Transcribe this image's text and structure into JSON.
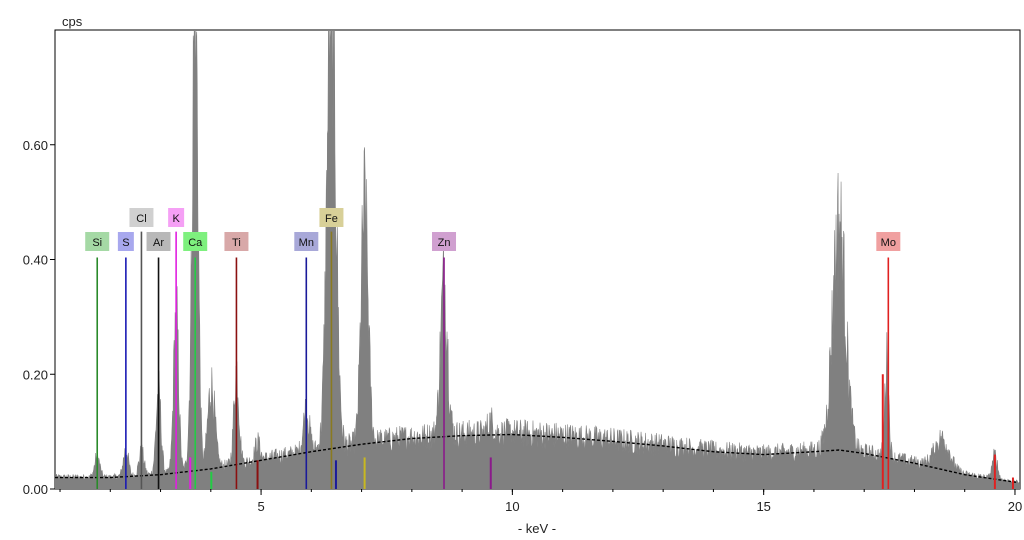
{
  "chart_data": {
    "type": "area",
    "title": "",
    "ylabel": "cps",
    "xlabel": "- keV -",
    "xlim": [
      0.9,
      20.1
    ],
    "ylim": [
      0,
      0.8
    ],
    "xticks": [
      5,
      10,
      15,
      20
    ],
    "yticks": [
      0,
      0.2,
      0.4,
      0.6
    ],
    "ytick_labels": [
      "0.00",
      "0.20",
      "0.40",
      "0.60"
    ],
    "grid": false,
    "spectrum_color": "#808080",
    "background_color": "#000000",
    "background_points": [
      [
        0.9,
        0.02
      ],
      [
        2,
        0.02
      ],
      [
        3,
        0.025
      ],
      [
        4,
        0.035
      ],
      [
        5,
        0.05
      ],
      [
        6,
        0.065
      ],
      [
        7,
        0.078
      ],
      [
        8,
        0.088
      ],
      [
        9,
        0.093
      ],
      [
        10,
        0.095
      ],
      [
        11,
        0.09
      ],
      [
        12,
        0.083
      ],
      [
        13,
        0.075
      ],
      [
        14,
        0.065
      ],
      [
        15,
        0.06
      ],
      [
        16,
        0.065
      ],
      [
        16.5,
        0.068
      ],
      [
        17,
        0.062
      ],
      [
        18,
        0.045
      ],
      [
        19,
        0.025
      ],
      [
        20,
        0.012
      ]
    ],
    "peaks": [
      {
        "x": 1.74,
        "h": 0.035,
        "w": 0.05
      },
      {
        "x": 2.31,
        "h": 0.045,
        "w": 0.05
      },
      {
        "x": 2.62,
        "h": 0.04,
        "w": 0.05
      },
      {
        "x": 2.96,
        "h": 0.14,
        "w": 0.05
      },
      {
        "x": 3.31,
        "h": 0.27,
        "w": 0.05
      },
      {
        "x": 3.59,
        "h": 0.05,
        "w": 0.05
      },
      {
        "x": 3.69,
        "h": 0.8,
        "w": 0.055
      },
      {
        "x": 4.01,
        "h": 0.14,
        "w": 0.07
      },
      {
        "x": 4.51,
        "h": 0.16,
        "w": 0.05
      },
      {
        "x": 4.93,
        "h": 0.03,
        "w": 0.05
      },
      {
        "x": 5.9,
        "h": 0.07,
        "w": 0.06
      },
      {
        "x": 6.4,
        "h": 0.8,
        "w": 0.085
      },
      {
        "x": 7.06,
        "h": 0.4,
        "w": 0.07
      },
      {
        "x": 8.64,
        "h": 0.26,
        "w": 0.07
      },
      {
        "x": 9.57,
        "h": 0.02,
        "w": 0.06
      },
      {
        "x": 16.5,
        "h": 0.38,
        "w": 0.13
      },
      {
        "x": 17.45,
        "h": 0.16,
        "w": 0.04
      },
      {
        "x": 18.55,
        "h": 0.05,
        "w": 0.15
      },
      {
        "x": 19.6,
        "h": 0.04,
        "w": 0.05
      }
    ],
    "element_markers": [
      {
        "label": "Si",
        "x": 1.74,
        "color": "#2a8a2a",
        "bg": "#a5d9a5",
        "row": 1
      },
      {
        "label": "S",
        "x": 2.31,
        "color": "#1a1ab4",
        "bg": "#a8a8ee",
        "row": 1
      },
      {
        "label": "Cl",
        "x": 2.62,
        "color": "#555555",
        "bg": "#d0d0d0",
        "row": 0
      },
      {
        "label": "Ar",
        "x": 2.96,
        "color": "#111111",
        "bg": "#b8b8b8",
        "row": 1
      },
      {
        "label": "K",
        "x": 3.31,
        "color": "#e020e0",
        "bg": "#f5a0f5",
        "row": 0
      },
      {
        "label": "Ca",
        "x": 3.69,
        "color": "#22cc44",
        "bg": "#7ef07e",
        "row": 1
      },
      {
        "label": "Ti",
        "x": 4.51,
        "color": "#8b1010",
        "bg": "#d8a8a8",
        "row": 1
      },
      {
        "label": "Mn",
        "x": 5.9,
        "color": "#1a1a9a",
        "bg": "#a8a8d8",
        "row": 1
      },
      {
        "label": "Fe",
        "x": 6.4,
        "color": "#8a7a20",
        "bg": "#d8d098",
        "row": 0
      },
      {
        "label": "Zn",
        "x": 8.64,
        "color": "#8a1a8a",
        "bg": "#d0a0d0",
        "row": 1
      },
      {
        "label": "Mo",
        "x": 17.48,
        "color": "#e02020",
        "bg": "#f0a0a0",
        "row": 1
      }
    ],
    "line_heights": {
      "row0": 0.445,
      "row1": 0.4
    },
    "minor_lines": [
      {
        "x": 3.59,
        "y": 0.055,
        "color": "#e020e0"
      },
      {
        "x": 4.01,
        "y": 0.03,
        "color": "#22cc44"
      },
      {
        "x": 4.93,
        "y": 0.05,
        "color": "#8b1010"
      },
      {
        "x": 6.49,
        "y": 0.05,
        "color": "#1a1a9a"
      },
      {
        "x": 7.06,
        "y": 0.055,
        "color": "#c8b820"
      },
      {
        "x": 9.57,
        "y": 0.055,
        "color": "#8a1a8a"
      },
      {
        "x": 17.37,
        "y": 0.2,
        "color": "#e02020"
      },
      {
        "x": 19.6,
        "y": 0.06,
        "color": "#e02020"
      },
      {
        "x": 19.96,
        "y": 0.02,
        "color": "#e02020"
      }
    ]
  }
}
